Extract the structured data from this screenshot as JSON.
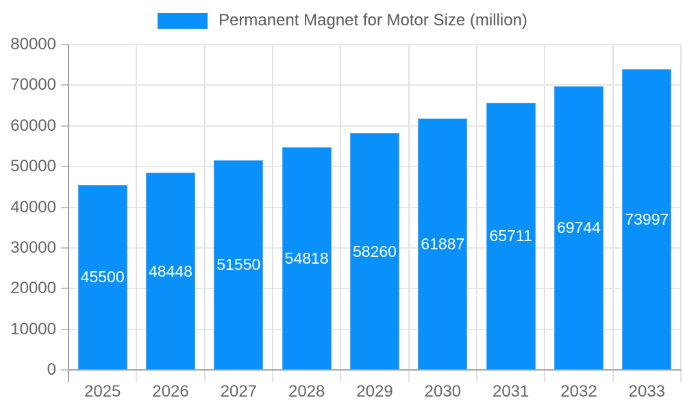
{
  "legend": {
    "label": "Permanent Magnet for Motor Size (million)"
  },
  "chart_data": {
    "type": "bar",
    "title": "Permanent Magnet for Motor Size (million)",
    "series_name": "Permanent Magnet for Motor Size (million)",
    "categories": [
      "2025",
      "2026",
      "2027",
      "2028",
      "2029",
      "2030",
      "2031",
      "2032",
      "2033"
    ],
    "values": [
      45500,
      48448,
      51550,
      54818,
      58260,
      61887,
      65711,
      69744,
      73997
    ],
    "xlabel": "",
    "ylabel": "",
    "ylim": [
      0,
      80000
    ],
    "ytick_step": 10000,
    "ytick_labels": [
      "0",
      "10000",
      "20000",
      "30000",
      "40000",
      "50000",
      "60000",
      "70000",
      "80000"
    ],
    "grid": true,
    "legend_position": "top",
    "value_label_style": "white text centered inside bars",
    "colors": {
      "bar": "#0A90FB",
      "bar_edge": "#53ADF8",
      "grid": "#E6E6E6",
      "grid2": "#E2E2E2",
      "tick": "#C2C2C2",
      "axis": "#9E9E9E",
      "axis2": "#A8A8A8",
      "text": "#666666",
      "legend_text": "#58595B",
      "value_label": "#FFFFFF",
      "background": "#FFFFFF"
    }
  }
}
